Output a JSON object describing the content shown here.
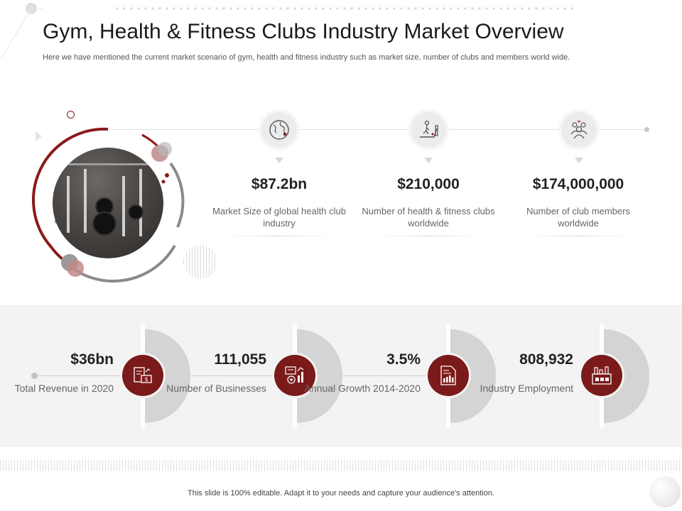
{
  "header": {
    "title": "Gym, Health & Fitness Clubs Industry Market Overview",
    "subtitle": "Here we have mentioned the current market scenario of gym, health and fitness industry such as market size, number of clubs and members world wide."
  },
  "stats": [
    {
      "value": "$87.2bn",
      "label": "Market Size of global health club industry",
      "icon": "globe-icon"
    },
    {
      "value": "$210,000",
      "label": "Number of health & fitness clubs worldwide",
      "icon": "treadmill-icon"
    },
    {
      "value": "$174,000,000",
      "label": "Number of club members worldwide",
      "icon": "group-members-icon"
    }
  ],
  "kpis": [
    {
      "value": "$36bn",
      "label": "Total Revenue in 2020",
      "icon": "revenue-document-icon"
    },
    {
      "value": "111,055",
      "label": "Number of Businesses",
      "icon": "business-gear-chart-icon"
    },
    {
      "value": "3.5%",
      "label": "Annual Growth 2014-2020",
      "icon": "growth-report-icon"
    },
    {
      "value": "808,932",
      "label": "Industry Employment",
      "icon": "factory-workers-icon"
    }
  ],
  "footer": {
    "note": "This slide is 100% editable. Adapt it to your needs and capture your audience's attention."
  },
  "colors": {
    "accent": "#7b1a1a",
    "panel": "#f3f3f3",
    "half_circle": "#d4d4d4"
  }
}
